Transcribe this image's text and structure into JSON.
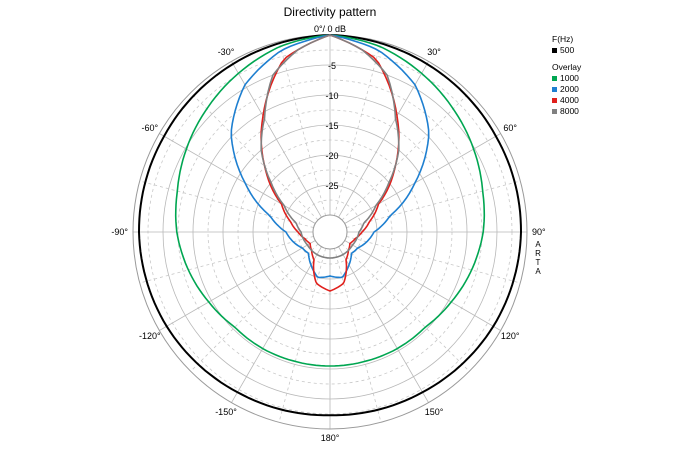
{
  "chart_data": {
    "type": "polar",
    "title": "Directivity pattern",
    "radial_unit_label": "0°/ 0 dB",
    "radial_ticks": [
      "-5",
      "-10",
      "-15",
      "-20",
      "-25"
    ],
    "radial_range_db": [
      -30,
      0
    ],
    "angle_labels": [
      "0°/ 0 dB",
      "30°",
      "60°",
      "90°",
      "120°",
      "150°",
      "180°",
      "-150°",
      "-120°",
      "-90°",
      "-60°",
      "-30°"
    ],
    "grid": true,
    "legend_placement": "right",
    "legend": {
      "header": "F(Hz)",
      "main_series": [
        {
          "name": "500",
          "color": "#000000"
        }
      ],
      "overlay_label": "Overlay",
      "overlay_series": [
        {
          "name": "1000",
          "color": "#00a651"
        },
        {
          "name": "2000",
          "color": "#1e7fd0"
        },
        {
          "name": "4000",
          "color": "#e0201c"
        },
        {
          "name": "8000",
          "color": "#808080"
        }
      ]
    },
    "series": [
      {
        "name": "500",
        "color": "#000000",
        "angles": [
          0,
          30,
          60,
          90,
          120,
          150,
          180
        ],
        "db": [
          0,
          -0.5,
          -0.9,
          -1.0,
          -1.4,
          -2.0,
          -2.3
        ]
      },
      {
        "name": "1000",
        "color": "#00a651",
        "angles": [
          0,
          15,
          30,
          45,
          60,
          75,
          90,
          105,
          120,
          135,
          150,
          165,
          180
        ],
        "db": [
          0,
          -0.8,
          -2.3,
          -3.8,
          -5.2,
          -6.5,
          -7.3,
          -8.4,
          -9.5,
          -10.4,
          -10.4,
          -10.5,
          -10.5
        ]
      },
      {
        "name": "2000",
        "color": "#1e7fd0",
        "angles": [
          0,
          15,
          30,
          45,
          60,
          75,
          90,
          105,
          120,
          135,
          150,
          165,
          180
        ],
        "db": [
          0,
          -1.5,
          -4.5,
          -9.5,
          -16.5,
          -22.5,
          -25.5,
          -26.5,
          -27.5,
          -27.8,
          -26.5,
          -25.0,
          -25.5
        ]
      },
      {
        "name": "4000",
        "color": "#e0201c",
        "angles": [
          0,
          15,
          30,
          45,
          60,
          75,
          90,
          105,
          120,
          135,
          150,
          165,
          180
        ],
        "db": [
          0,
          -3.0,
          -10.5,
          -17.5,
          -23.5,
          -26.0,
          -27.5,
          -28.5,
          -29.0,
          -28.5,
          -27.5,
          -24.0,
          -23.0
        ]
      },
      {
        "name": "8000",
        "color": "#808080",
        "angles": [
          0,
          10,
          20,
          30,
          40,
          50,
          60,
          75,
          90,
          120,
          150,
          180
        ],
        "db": [
          0,
          -2.0,
          -5.0,
          -11.0,
          -15.0,
          -20.0,
          -24.0,
          -27.0,
          -28.0,
          -28.5,
          -28.5,
          -28.5
        ]
      }
    ]
  },
  "side_label": [
    "A",
    "R",
    "T",
    "A"
  ]
}
